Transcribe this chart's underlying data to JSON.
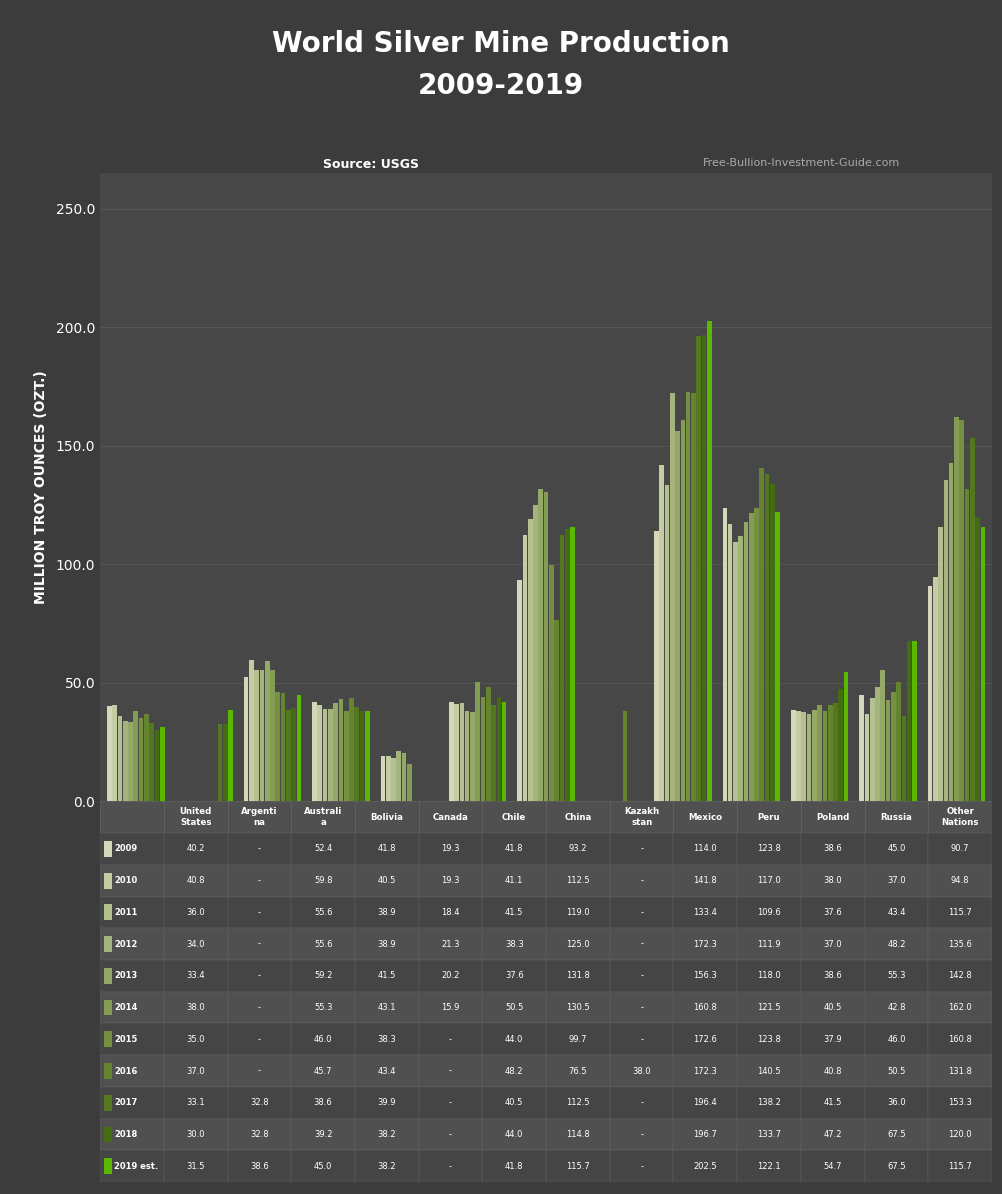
{
  "title_line1": "World Silver Mine Production",
  "title_line2": "2009-2019",
  "source_text": "Source: USGS",
  "website_text": "Free-Bullion-Investment-Guide.com",
  "ylabel": "MILLION TROY OUNCES (OZT.)",
  "background_color": "#3c3c3c",
  "plot_bg_color": "#474747",
  "grid_color": "#5a5a5a",
  "text_color": "#ffffff",
  "yticks": [
    0,
    50.0,
    100.0,
    150.0,
    200.0,
    250.0
  ],
  "ylim": [
    0,
    265
  ],
  "countries": [
    "United\nStates",
    "Argenti\nna",
    "Australi\na",
    "Bolivia",
    "Canada",
    "Chile",
    "China",
    "Kazakh\nstan",
    "Mexico",
    "Peru",
    "Poland",
    "Russia",
    "Other\nNations"
  ],
  "years": [
    "2009",
    "2010",
    "2011",
    "2012",
    "2013",
    "2014",
    "2015",
    "2016",
    "2017",
    "2018",
    "2019 est."
  ],
  "data": {
    "United\nStates": [
      40.2,
      40.8,
      36.0,
      34.0,
      33.4,
      38.0,
      35.0,
      37.0,
      33.1,
      30.0,
      31.5
    ],
    "Argenti\nna": [
      null,
      null,
      null,
      null,
      null,
      null,
      null,
      null,
      32.8,
      32.8,
      38.6
    ],
    "Australi\na": [
      52.4,
      59.8,
      55.6,
      55.6,
      59.2,
      55.3,
      46.0,
      45.7,
      38.6,
      39.2,
      45.0
    ],
    "Bolivia": [
      41.8,
      40.5,
      38.9,
      38.9,
      41.5,
      43.1,
      38.3,
      43.4,
      39.9,
      38.2,
      38.2
    ],
    "Canada": [
      19.3,
      19.3,
      18.4,
      21.3,
      20.2,
      15.9,
      null,
      null,
      null,
      null,
      null
    ],
    "Chile": [
      41.8,
      41.1,
      41.5,
      38.3,
      37.6,
      50.5,
      44.0,
      48.2,
      40.5,
      44.0,
      41.8
    ],
    "China": [
      93.2,
      112.5,
      119.0,
      125.0,
      131.8,
      130.5,
      99.7,
      76.5,
      112.5,
      114.8,
      115.7
    ],
    "Kazakh\nstan": [
      null,
      null,
      null,
      null,
      null,
      null,
      null,
      38.0,
      null,
      null,
      null
    ],
    "Mexico": [
      114.0,
      141.8,
      133.4,
      172.3,
      156.3,
      160.8,
      172.6,
      172.3,
      196.4,
      196.7,
      202.5
    ],
    "Peru": [
      123.8,
      117.0,
      109.6,
      111.9,
      118.0,
      121.5,
      123.8,
      140.5,
      138.2,
      133.7,
      122.1
    ],
    "Poland": [
      38.6,
      38.0,
      37.6,
      37.0,
      38.6,
      40.5,
      37.9,
      40.8,
      41.5,
      47.2,
      54.7
    ],
    "Russia": [
      45.0,
      37.0,
      43.4,
      48.2,
      55.3,
      42.8,
      46.0,
      50.5,
      36.0,
      67.5,
      67.5
    ],
    "Other\nNations": [
      90.7,
      94.8,
      115.7,
      135.6,
      142.8,
      162.0,
      160.8,
      131.8,
      153.3,
      120.0,
      115.7
    ]
  },
  "bar_colors": [
    "#d4d8b8",
    "#c4cca4",
    "#b4c090",
    "#a4b47c",
    "#94a868",
    "#849c54",
    "#749040",
    "#648430",
    "#547820",
    "#446c10",
    "#5ab800"
  ],
  "table_row_colors": [
    "#454545",
    "#505050"
  ],
  "table_header_bg": "#505050",
  "table_line_color": "#666666"
}
